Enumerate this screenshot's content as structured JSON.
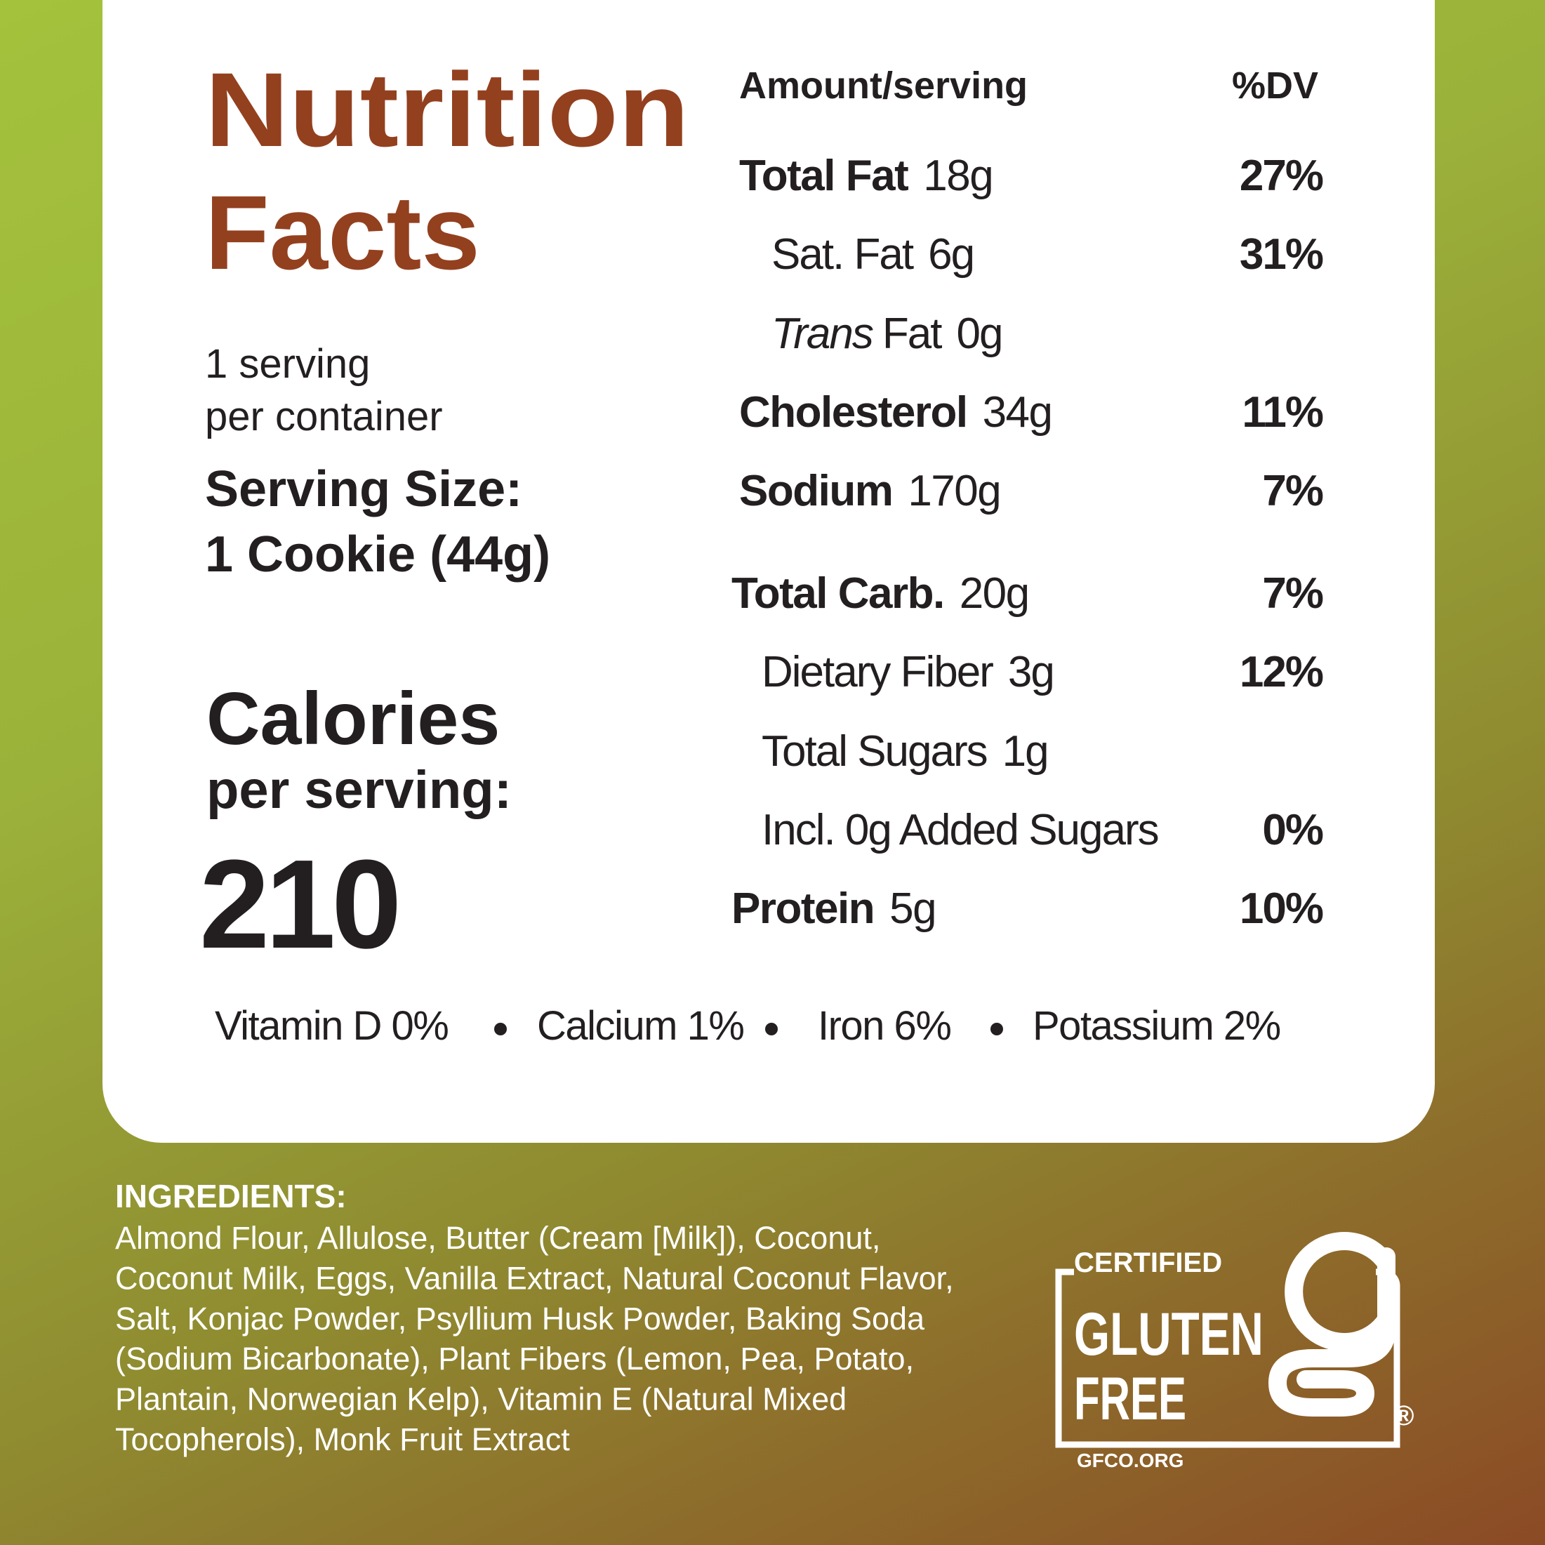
{
  "header": {
    "title_line1": "Nutrition",
    "title_line2": "Facts"
  },
  "servings": {
    "line1": "1 serving",
    "line2": "per container",
    "size_label": "Serving Size:",
    "size_value": "1 Cookie (44g)"
  },
  "calories": {
    "label": "Calories",
    "sublabel": "per serving:",
    "value": "210"
  },
  "table": {
    "header_amount": "Amount/serving",
    "header_dv": "%DV",
    "rows": [
      {
        "label": "Total Fat",
        "amount": "18g",
        "dv": "27%",
        "bold": true
      },
      {
        "label": "Sat. Fat",
        "amount": "6g",
        "dv": "31%",
        "bold": false
      },
      {
        "label_italic": "Trans",
        "label": "Fat",
        "amount": "0g",
        "bold": false
      },
      {
        "label": "Cholesterol",
        "amount": "34g",
        "dv": "11%",
        "bold": true
      },
      {
        "label": "Sodium",
        "amount": "170g",
        "dv": "7%",
        "bold": true
      },
      {
        "label": "Total Carb.",
        "amount": "20g",
        "dv": "7%",
        "bold": true
      },
      {
        "label": "Dietary Fiber",
        "amount": "3g",
        "dv": "12%",
        "bold": false
      },
      {
        "label": "Total Sugars",
        "amount": "1g",
        "bold": false
      },
      {
        "label": "Incl. 0g Added Sugars",
        "dv": "0%",
        "bold": false
      },
      {
        "label": "Protein",
        "amount": "5g",
        "dv": "10%",
        "bold": true
      }
    ]
  },
  "vitamins": [
    "Vitamin D 0%",
    "Calcium 1%",
    "Iron 6%",
    "Potassium 2%"
  ],
  "ingredients": {
    "title": "INGREDIENTS:",
    "lines": [
      "Almond Flour, Allulose, Butter (Cream [Milk]), Coconut,",
      "Coconut Milk, Eggs, Vanilla Extract, Natural Coconut Flavor,",
      "Salt, Konjac Powder, Psyllium Husk Powder, Baking Soda",
      "(Sodium Bicarbonate), Plant Fibers (Lemon, Pea, Potato,",
      "Plantain, Norwegian Kelp), Vitamin E (Natural Mixed",
      "Tocopherols), Monk Fruit Extract"
    ]
  },
  "badge": {
    "top": "CERTIFIED",
    "line1": "GLUTEN",
    "line2": "FREE",
    "url": "GFCO.ORG",
    "mark": "®"
  }
}
